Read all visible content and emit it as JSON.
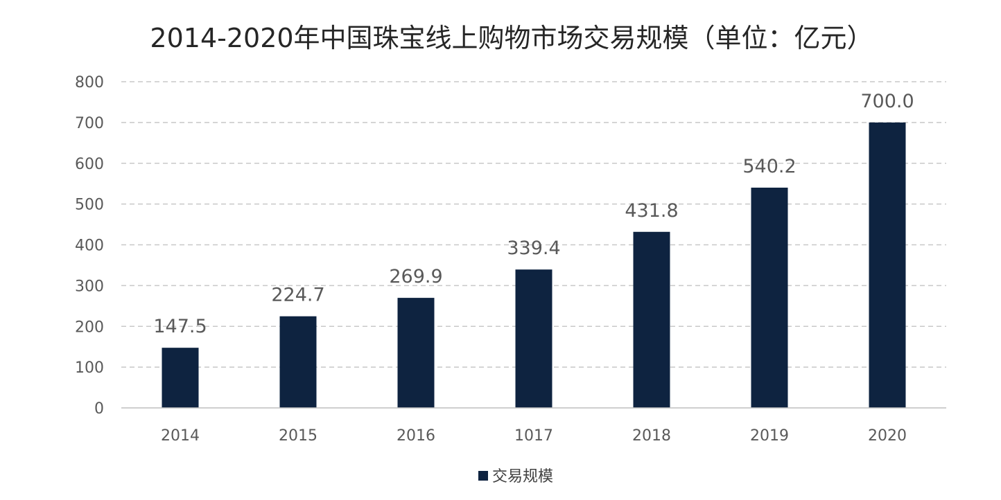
{
  "chart_data": {
    "type": "bar",
    "title": "2014-2020年中国珠宝线上购物市场交易规模（单位：亿元）",
    "categories": [
      "2014",
      "2015",
      "2016",
      "1017",
      "2018",
      "2019",
      "2020"
    ],
    "series": [
      {
        "name": "交易规模",
        "values": [
          147.5,
          224.7,
          269.9,
          339.4,
          431.8,
          540.2,
          700.0
        ],
        "color": "#0e2340"
      }
    ],
    "data_labels": [
      "147.5",
      "224.7",
      "269.9",
      "339.4",
      "431.8",
      "540.2",
      "700.0"
    ],
    "ylim": [
      0,
      800
    ],
    "yticks": [
      "0",
      "100",
      "200",
      "300",
      "400",
      "500",
      "600",
      "700",
      "800"
    ],
    "xlabel": "",
    "ylabel": "",
    "grid": "dashed horizontal",
    "legend_position": "bottom"
  }
}
